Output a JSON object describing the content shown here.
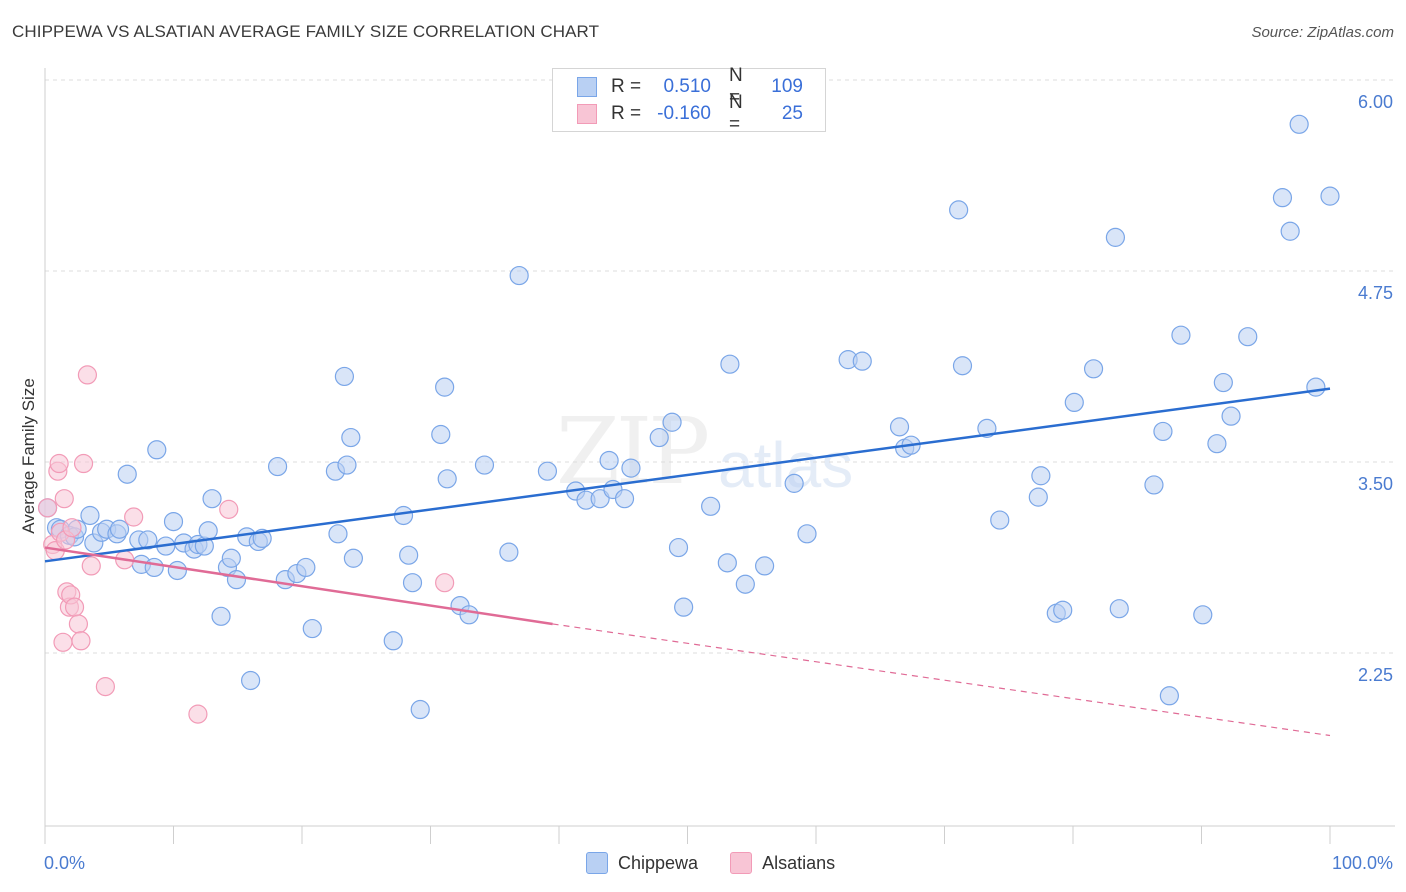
{
  "title": "CHIPPEWA VS ALSATIAN AVERAGE FAMILY SIZE CORRELATION CHART",
  "source": "Source: ZipAtlas.com",
  "watermark": {
    "zip": "ZIP",
    "atlas": "atlas"
  },
  "colors": {
    "chippewa": "#7aa6e8",
    "chippewa_fill": "#b9d0f3",
    "chippewa_line": "#2a6dd0",
    "alsatians": "#f29bb7",
    "alsatians_fill": "#f8c5d5",
    "alsatians_line": "#e06b96",
    "axis_text": "#4a7bd0"
  },
  "legend": {
    "rows": [
      {
        "r_label": "R =",
        "r_value": "0.510",
        "n_label": "N =",
        "n_value": "109"
      },
      {
        "r_label": "R =",
        "r_value": "-0.160",
        "n_label": "N =",
        "n_value": "25"
      }
    ]
  },
  "bottom_legend": [
    "Chippewa",
    "Alsatians"
  ],
  "chart_data": {
    "type": "scatter",
    "title": "CHIPPEWA VS ALSATIAN AVERAGE FAMILY SIZE CORRELATION CHART",
    "xlabel": "",
    "ylabel": "Average Family Size",
    "xlim": [
      0,
      100
    ],
    "ylim": [
      1.2,
      6.1
    ],
    "x_tick_labels": [
      "0.0%",
      "100.0%"
    ],
    "y_ticks": [
      2.25,
      3.5,
      4.75,
      6.0
    ],
    "y_tick_labels": [
      "2.25",
      "3.50",
      "4.75",
      "6.00"
    ],
    "series": [
      {
        "name": "Chippewa",
        "r": 0.51,
        "n": 109,
        "trend": {
          "x": [
            0,
            100
          ],
          "y": [
            2.85,
            3.98
          ]
        },
        "points": [
          [
            0.2,
            3.2
          ],
          [
            0.9,
            3.07
          ],
          [
            1.2,
            3.06
          ],
          [
            1.9,
            3.02
          ],
          [
            2.3,
            3.01
          ],
          [
            2.5,
            3.06
          ],
          [
            3.5,
            3.15
          ],
          [
            3.8,
            2.97
          ],
          [
            4.4,
            3.04
          ],
          [
            4.8,
            3.06
          ],
          [
            5.6,
            3.03
          ],
          [
            5.8,
            3.06
          ],
          [
            6.4,
            3.42
          ],
          [
            7.3,
            2.99
          ],
          [
            7.5,
            2.83
          ],
          [
            8.0,
            2.99
          ],
          [
            8.5,
            2.81
          ],
          [
            8.7,
            3.58
          ],
          [
            9.4,
            2.95
          ],
          [
            10.0,
            3.11
          ],
          [
            10.3,
            2.79
          ],
          [
            10.8,
            2.97
          ],
          [
            11.6,
            2.93
          ],
          [
            11.9,
            2.96
          ],
          [
            12.4,
            2.95
          ],
          [
            12.7,
            3.05
          ],
          [
            13.0,
            3.26
          ],
          [
            13.7,
            2.49
          ],
          [
            14.2,
            2.81
          ],
          [
            14.5,
            2.87
          ],
          [
            14.9,
            2.73
          ],
          [
            15.7,
            3.01
          ],
          [
            16.0,
            2.07
          ],
          [
            16.6,
            2.98
          ],
          [
            16.9,
            3.0
          ],
          [
            18.1,
            3.47
          ],
          [
            18.7,
            2.73
          ],
          [
            19.6,
            2.77
          ],
          [
            20.3,
            2.81
          ],
          [
            20.8,
            2.41
          ],
          [
            22.6,
            3.44
          ],
          [
            22.8,
            3.03
          ],
          [
            23.3,
            4.06
          ],
          [
            23.5,
            3.48
          ],
          [
            23.8,
            3.66
          ],
          [
            24.0,
            2.87
          ],
          [
            27.1,
            2.33
          ],
          [
            27.9,
            3.15
          ],
          [
            28.3,
            2.89
          ],
          [
            28.6,
            2.71
          ],
          [
            29.2,
            1.88
          ],
          [
            30.8,
            3.68
          ],
          [
            31.1,
            3.99
          ],
          [
            31.3,
            3.39
          ],
          [
            32.3,
            2.56
          ],
          [
            33.0,
            2.5
          ],
          [
            34.2,
            3.48
          ],
          [
            36.1,
            2.91
          ],
          [
            36.9,
            4.72
          ],
          [
            39.1,
            3.44
          ],
          [
            41.3,
            3.31
          ],
          [
            42.1,
            3.25
          ],
          [
            43.2,
            3.26
          ],
          [
            43.9,
            3.51
          ],
          [
            44.2,
            3.32
          ],
          [
            45.1,
            3.26
          ],
          [
            45.6,
            3.46
          ],
          [
            47.8,
            3.66
          ],
          [
            48.8,
            3.76
          ],
          [
            49.3,
            2.94
          ],
          [
            49.7,
            2.55
          ],
          [
            51.8,
            3.21
          ],
          [
            53.1,
            2.84
          ],
          [
            53.3,
            4.14
          ],
          [
            54.5,
            2.7
          ],
          [
            56.0,
            2.82
          ],
          [
            58.3,
            3.36
          ],
          [
            59.3,
            3.03
          ],
          [
            62.5,
            4.17
          ],
          [
            63.6,
            4.16
          ],
          [
            66.5,
            3.73
          ],
          [
            66.9,
            3.59
          ],
          [
            67.4,
            3.61
          ],
          [
            71.1,
            5.15
          ],
          [
            71.4,
            4.13
          ],
          [
            73.3,
            3.72
          ],
          [
            74.3,
            3.12
          ],
          [
            77.3,
            3.27
          ],
          [
            77.5,
            3.41
          ],
          [
            78.7,
            2.51
          ],
          [
            79.2,
            2.53
          ],
          [
            80.1,
            3.89
          ],
          [
            81.6,
            4.11
          ],
          [
            83.3,
            4.97
          ],
          [
            83.6,
            2.54
          ],
          [
            86.3,
            3.35
          ],
          [
            87.0,
            3.7
          ],
          [
            87.5,
            1.97
          ],
          [
            88.4,
            4.33
          ],
          [
            90.1,
            2.5
          ],
          [
            91.2,
            3.62
          ],
          [
            91.7,
            4.02
          ],
          [
            92.3,
            3.8
          ],
          [
            93.6,
            4.32
          ],
          [
            96.3,
            5.23
          ],
          [
            96.9,
            5.01
          ],
          [
            97.6,
            5.71
          ],
          [
            98.9,
            3.99
          ],
          [
            100.0,
            5.24
          ]
        ]
      },
      {
        "name": "Alsatians",
        "r": -0.16,
        "n": 25,
        "trend": {
          "x": [
            0,
            39.5
          ],
          "y": [
            2.94,
            2.44
          ],
          "extended_dashed": {
            "x": [
              39.5,
              100
            ],
            "y": [
              2.44,
              1.71
            ]
          }
        },
        "points": [
          [
            0.2,
            3.2
          ],
          [
            0.6,
            2.96
          ],
          [
            0.8,
            2.92
          ],
          [
            1.0,
            3.44
          ],
          [
            1.1,
            3.49
          ],
          [
            1.2,
            3.04
          ],
          [
            1.4,
            2.32
          ],
          [
            1.5,
            3.26
          ],
          [
            1.6,
            2.99
          ],
          [
            1.7,
            2.65
          ],
          [
            1.9,
            2.55
          ],
          [
            2.0,
            2.63
          ],
          [
            2.1,
            3.07
          ],
          [
            2.3,
            2.55
          ],
          [
            2.6,
            2.44
          ],
          [
            2.8,
            2.33
          ],
          [
            3.0,
            3.49
          ],
          [
            3.3,
            4.07
          ],
          [
            3.6,
            2.82
          ],
          [
            4.7,
            2.03
          ],
          [
            6.2,
            2.86
          ],
          [
            6.9,
            3.14
          ],
          [
            11.9,
            1.85
          ],
          [
            14.3,
            3.19
          ],
          [
            31.1,
            2.71
          ]
        ]
      }
    ]
  }
}
